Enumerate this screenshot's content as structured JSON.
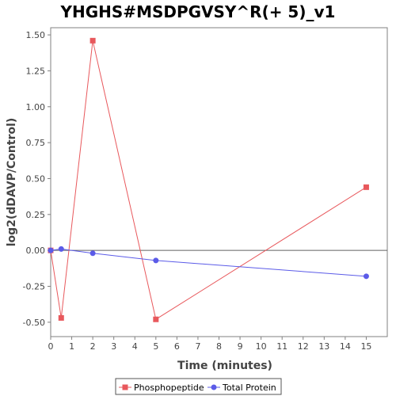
{
  "chart_data": {
    "type": "line",
    "title": "YHGHS#MSDPGVSY^R(+ 5)_v1",
    "xlabel": "Time (minutes)",
    "ylabel": "log2(dDAVP/Control)",
    "xlim": [
      0,
      16
    ],
    "ylim": [
      -0.6,
      1.55
    ],
    "x_ticks": [
      "0",
      "1",
      "2",
      "3",
      "4",
      "5",
      "6",
      "7",
      "8",
      "9",
      "10",
      "11",
      "12",
      "13",
      "14",
      "15"
    ],
    "y_ticks": [
      "1.50",
      "1.25",
      "1.00",
      "0.75",
      "0.50",
      "0.25",
      "0.00",
      "-0.25",
      "-0.50"
    ],
    "grid": false,
    "zero_line": true,
    "legend_position": "bottom",
    "series": [
      {
        "name": "Phosphopeptide",
        "color": "#e8585c",
        "marker": "square",
        "x": [
          0,
          0.5,
          2,
          5,
          15
        ],
        "y": [
          0.0,
          -0.47,
          1.46,
          -0.48,
          0.44
        ]
      },
      {
        "name": "Total Protein",
        "color": "#5b5be8",
        "marker": "circle",
        "x": [
          0,
          0.5,
          2,
          5,
          15
        ],
        "y": [
          0.0,
          0.01,
          -0.02,
          -0.07,
          -0.18
        ]
      }
    ]
  }
}
